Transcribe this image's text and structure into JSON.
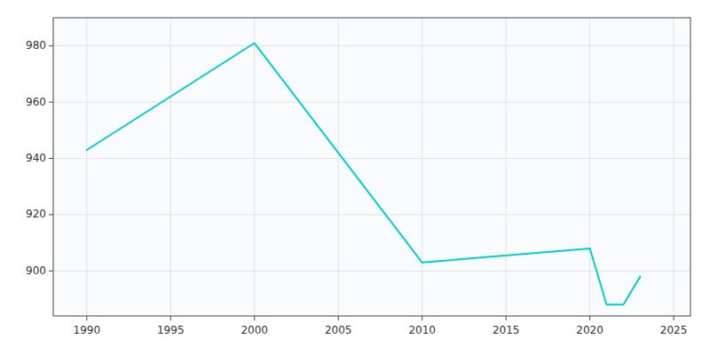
{
  "chart_data": {
    "type": "line",
    "x": [
      1990,
      2000,
      2010,
      2020,
      2021,
      2022,
      2023
    ],
    "values": [
      943,
      981,
      903,
      908,
      888,
      888,
      898
    ],
    "color": "#00CED1",
    "xlim": [
      1988,
      2026
    ],
    "ylim": [
      884,
      990
    ],
    "xticks": [
      1990,
      1995,
      2000,
      2005,
      2010,
      2015,
      2020,
      2025
    ],
    "yticks": [
      900,
      920,
      940,
      960,
      980
    ],
    "grid": true
  }
}
